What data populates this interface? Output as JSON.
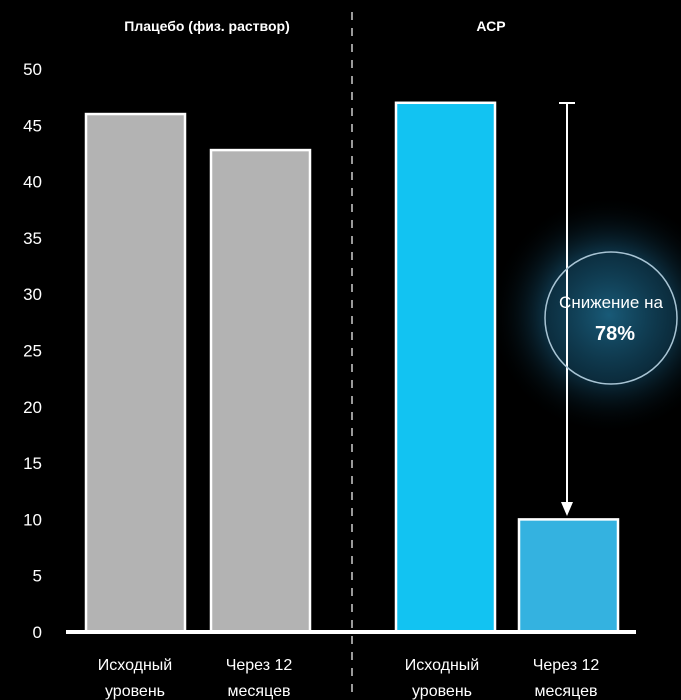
{
  "chart_data": {
    "type": "bar",
    "groups": [
      {
        "label": "Плацебо (физ. раствор)",
        "categories": [
          "Исходный уровень",
          "Через 12 месяцев"
        ],
        "values": [
          46,
          42.8
        ],
        "color": "#b3b3b3"
      },
      {
        "label": "АСР",
        "categories": [
          "Исходный уровень",
          "Через 12 месяцев"
        ],
        "values": [
          47,
          10
        ],
        "color": "#12c3f2",
        "second_color": "#34b2e0"
      }
    ],
    "category_labels": [
      [
        "Исходный",
        "уровень"
      ],
      [
        "Через 12",
        "месяцев"
      ],
      [
        "Исходный",
        "уровень"
      ],
      [
        "Через 12",
        "месяцев"
      ]
    ],
    "ylim": [
      0,
      50
    ],
    "yticks": [
      0,
      5,
      10,
      15,
      20,
      25,
      30,
      35,
      40,
      45,
      50
    ],
    "grid": true,
    "annotation": {
      "line1": "Снижение на",
      "line2": "78%"
    }
  }
}
